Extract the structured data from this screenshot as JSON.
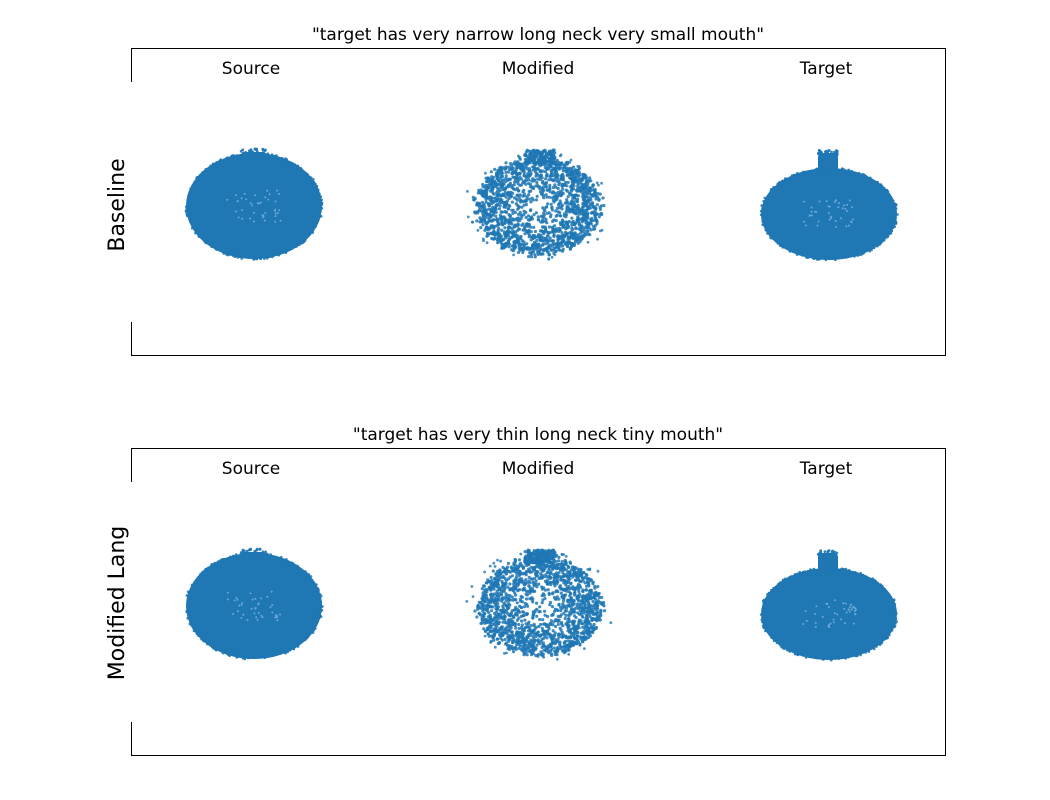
{
  "figure": {
    "panels": [
      {
        "id": "baseline",
        "title": "\"target has very narrow long neck very small mouth\"",
        "ylabel": "Baseline"
      },
      {
        "id": "modified-lang",
        "title": "\"target has very thin long neck tiny mouth\"",
        "ylabel": "Modified Lang"
      }
    ],
    "column_labels": [
      "Source",
      "Modified",
      "Target"
    ],
    "point_color": "#1f77b4"
  },
  "chart_data": [
    {
      "type": "scatter",
      "title": "\"target has very narrow long neck very small mouth\"",
      "ylabel": "Baseline",
      "subplots": [
        {
          "label": "Source",
          "shape": "bottle point cloud: wide ellipsoidal body with short narrow neck",
          "grid": false,
          "axes": "hidden"
        },
        {
          "label": "Modified",
          "shape": "noisy, sparse ellipsoidal point cloud with small neck",
          "grid": false,
          "axes": "hidden"
        },
        {
          "label": "Target",
          "shape": "bottle point cloud: wide ellipsoidal body with narrow neck",
          "grid": false,
          "axes": "hidden"
        }
      ]
    },
    {
      "type": "scatter",
      "title": "\"target has very thin long neck tiny mouth\"",
      "ylabel": "Modified Lang",
      "subplots": [
        {
          "label": "Source",
          "shape": "bottle point cloud: wide ellipsoidal body with short narrow neck",
          "grid": false,
          "axes": "hidden"
        },
        {
          "label": "Modified",
          "shape": "noisy, sparse ellipsoidal point cloud with small neck",
          "grid": false,
          "axes": "hidden"
        },
        {
          "label": "Target",
          "shape": "bottle point cloud: wide ellipsoidal body with narrow neck",
          "grid": false,
          "axes": "hidden"
        }
      ]
    }
  ]
}
